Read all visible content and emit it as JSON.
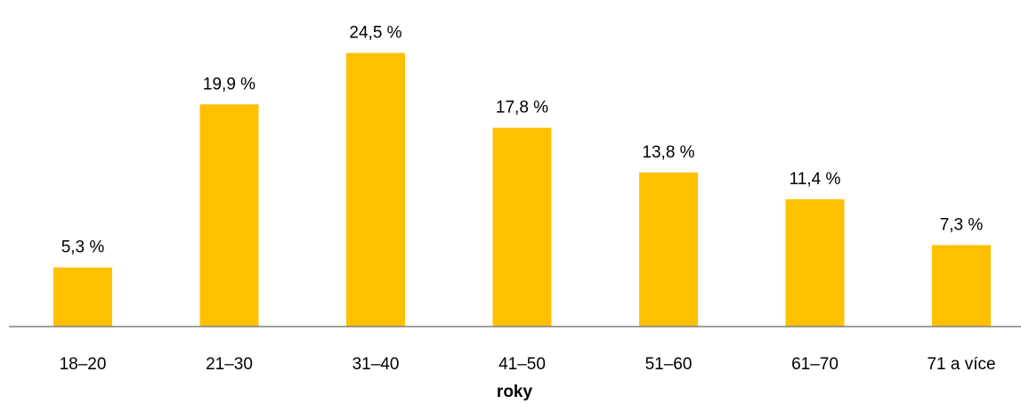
{
  "chart_data": {
    "type": "bar",
    "categories": [
      "18–20",
      "21–30",
      "31–40",
      "41–50",
      "51–60",
      "61–70",
      "71 a více"
    ],
    "values": [
      5.3,
      19.9,
      24.5,
      17.8,
      13.8,
      11.4,
      7.3
    ],
    "data_labels": [
      "5,3 %",
      "19,9 %",
      "24,5 %",
      "17,8 %",
      "13,8 %",
      "11,4 %",
      "7,3 %"
    ],
    "title": "",
    "xlabel": "roky",
    "ylabel": "",
    "ylim": [
      0,
      25
    ],
    "grid": false,
    "legend": "none",
    "colors": {
      "bar": "#FFC000",
      "axis": "#808080",
      "text": "#000000"
    }
  }
}
